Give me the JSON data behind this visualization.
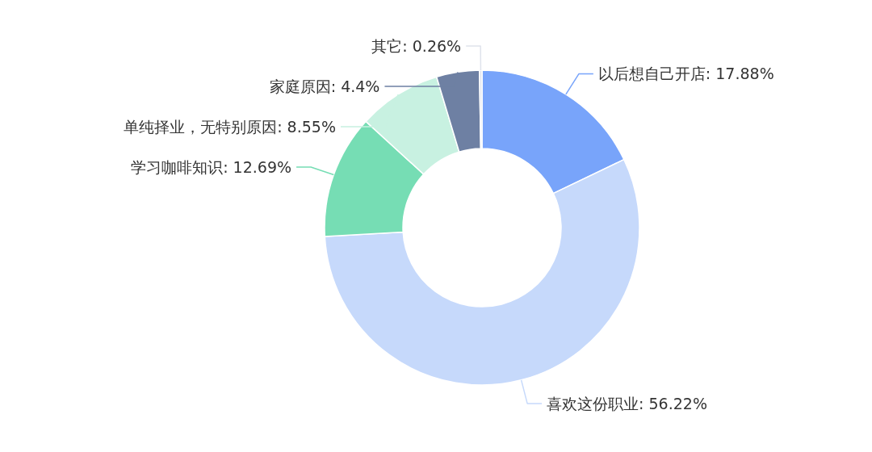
{
  "chart_data": {
    "type": "donut",
    "categories": [
      "以后想自己开店",
      "喜欢这份职业",
      "学习咖啡知识",
      "单纯择业，无特别原因",
      "家庭原因",
      "其它"
    ],
    "values": [
      17.88,
      56.22,
      12.69,
      8.55,
      4.4,
      0.26
    ],
    "value_labels": [
      "17.88%",
      "56.22%",
      "12.69%",
      "8.55%",
      "4.4%",
      "0.26%"
    ],
    "colors": [
      "#78a4fa",
      "#c6d9fb",
      "#76ddb4",
      "#c8f1e1",
      "#6e80a3",
      "#dfe3ec"
    ]
  }
}
